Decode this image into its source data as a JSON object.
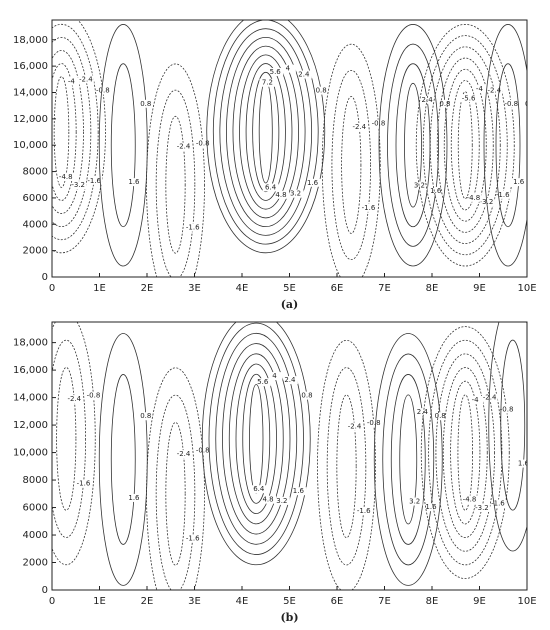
{
  "chart_data": [
    {
      "type": "contour",
      "caption": "(a)",
      "xlim": [
        0,
        10
      ],
      "ylim": [
        0,
        19500
      ],
      "xticks": [
        0,
        {
          "value": 1,
          "label": "1E"
        },
        {
          "value": 2,
          "label": "2E"
        },
        {
          "value": 3,
          "label": "3E"
        },
        {
          "value": 4,
          "label": "4E"
        },
        {
          "value": 5,
          "label": "5E"
        },
        {
          "value": 6,
          "label": "6E"
        },
        {
          "value": 7,
          "label": "7E"
        },
        {
          "value": 8,
          "label": "8E"
        },
        {
          "value": 9,
          "label": "9E"
        },
        {
          "value": 10,
          "label": "10E"
        }
      ],
      "yticks": [
        0,
        2000,
        4000,
        6000,
        8000,
        {
          "value": 10000,
          "label": "10,000"
        },
        {
          "value": 12000,
          "label": "12,000"
        },
        {
          "value": 14000,
          "label": "14,000"
        },
        {
          "value": 16000,
          "label": "16,000"
        },
        {
          "value": 18000,
          "label": "18,000"
        }
      ],
      "cells": [
        {
          "x": 0.2,
          "y": 11000,
          "levels": [
            -0.8,
            -1.6,
            -2.4,
            -3.2,
            -4,
            -4.8
          ]
        },
        {
          "x": 1.5,
          "y": 10000,
          "levels": [
            0.8,
            1.6
          ]
        },
        {
          "x": 2.6,
          "y": 7000,
          "levels": [
            -0.8,
            -1.6,
            -2.4
          ]
        },
        {
          "x": 4.5,
          "y": 11000,
          "levels": [
            0.8,
            1.6,
            2.4,
            3.2,
            4,
            4.8,
            5.6,
            6.4,
            7.2
          ]
        },
        {
          "x": 6.3,
          "y": 8500,
          "levels": [
            -0.8,
            -1.6,
            -2.4
          ]
        },
        {
          "x": 7.6,
          "y": 10000,
          "levels": [
            0.8,
            1.6,
            2.4,
            3.2
          ]
        },
        {
          "x": 8.7,
          "y": 10000,
          "levels": [
            -0.8,
            -1.6,
            -2.4,
            -3.2,
            -4,
            -4.8,
            -5.6
          ]
        },
        {
          "x": 9.6,
          "y": 10000,
          "levels": [
            0.8,
            1.6
          ]
        }
      ]
    },
    {
      "type": "contour",
      "caption": "(b)",
      "xlim": [
        0,
        10
      ],
      "ylim": [
        0,
        19500
      ],
      "xticks": [
        0,
        {
          "value": 1,
          "label": "1E"
        },
        {
          "value": 2,
          "label": "2E"
        },
        {
          "value": 3,
          "label": "3E"
        },
        {
          "value": 4,
          "label": "4E"
        },
        {
          "value": 5,
          "label": "5E"
        },
        {
          "value": 6,
          "label": "6E"
        },
        {
          "value": 7,
          "label": "7E"
        },
        {
          "value": 8,
          "label": "8E"
        },
        {
          "value": 9,
          "label": "9E"
        },
        {
          "value": 10,
          "label": "10E"
        }
      ],
      "yticks": [
        0,
        2000,
        4000,
        6000,
        8000,
        {
          "value": 10000,
          "label": "10,000"
        },
        {
          "value": 12000,
          "label": "12,000"
        },
        {
          "value": 14000,
          "label": "14,000"
        },
        {
          "value": 16000,
          "label": "16,000"
        },
        {
          "value": 18000,
          "label": "18,000"
        }
      ],
      "cells": [
        {
          "x": 0.3,
          "y": 11000,
          "levels": [
            -0.8,
            -1.6,
            -2.4
          ]
        },
        {
          "x": 1.5,
          "y": 9500,
          "levels": [
            0.8,
            1.6
          ]
        },
        {
          "x": 2.6,
          "y": 7000,
          "levels": [
            -0.8,
            -1.6,
            -2.4
          ]
        },
        {
          "x": 4.3,
          "y": 11000,
          "levels": [
            0.8,
            1.6,
            2.4,
            3.2,
            4,
            4.8,
            5.6,
            6.4
          ]
        },
        {
          "x": 6.2,
          "y": 9000,
          "levels": [
            -0.8,
            -1.6,
            -2.4
          ]
        },
        {
          "x": 7.5,
          "y": 9500,
          "levels": [
            0.8,
            1.6,
            2.4,
            3.2
          ]
        },
        {
          "x": 8.7,
          "y": 10000,
          "levels": [
            -0.8,
            -1.6,
            -2.4,
            -3.2,
            -4,
            -4.8
          ]
        },
        {
          "x": 9.7,
          "y": 12000,
          "levels": [
            0.8,
            1.6
          ]
        }
      ]
    }
  ]
}
